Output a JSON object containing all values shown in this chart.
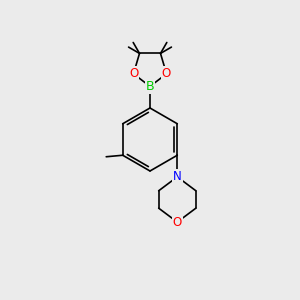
{
  "bg_color": "#ebebeb",
  "bond_color": "#000000",
  "bond_width": 1.2,
  "atom_colors": {
    "B": "#00cc00",
    "O": "#ff0000",
    "N": "#0000ff",
    "C": "#000000"
  },
  "font_size": 8.5
}
